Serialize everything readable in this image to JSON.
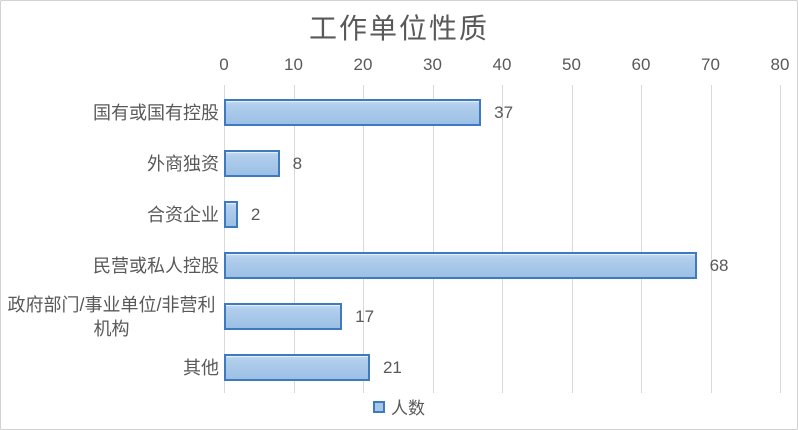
{
  "chart_data": {
    "type": "bar",
    "orientation": "horizontal",
    "title": "工作单位性质",
    "categories": [
      "国有或国有控股",
      "外商独资",
      "合资企业",
      "民营或私人控股",
      "政府部门/事业单位/非营利机构",
      "其他"
    ],
    "values": [
      37,
      8,
      2,
      68,
      17,
      21
    ],
    "series": [
      {
        "name": "人数",
        "values": [
          37,
          8,
          2,
          68,
          17,
          21
        ]
      }
    ],
    "data_labels": [
      "37",
      "8",
      "2",
      "68",
      "17",
      "21"
    ],
    "axis": {
      "position": "top",
      "min": 0,
      "max": 80,
      "tick_interval": 10,
      "ticks": [
        "0",
        "10",
        "20",
        "30",
        "40",
        "50",
        "60",
        "70",
        "80"
      ]
    },
    "legend": {
      "label": "人数",
      "position": "bottom"
    },
    "gridlines": {
      "vertical": true,
      "horizontal": false
    },
    "colors": {
      "bar_fill": "#a9c8e9",
      "bar_fill_light": "#c6daf1",
      "bar_fill_dark": "#9cc0e5",
      "bar_border": "#3e7abe",
      "gridline": "#d9d9d9",
      "text": "#595959",
      "background": "#ffffff",
      "chart_border": "#d2d2d2"
    }
  }
}
